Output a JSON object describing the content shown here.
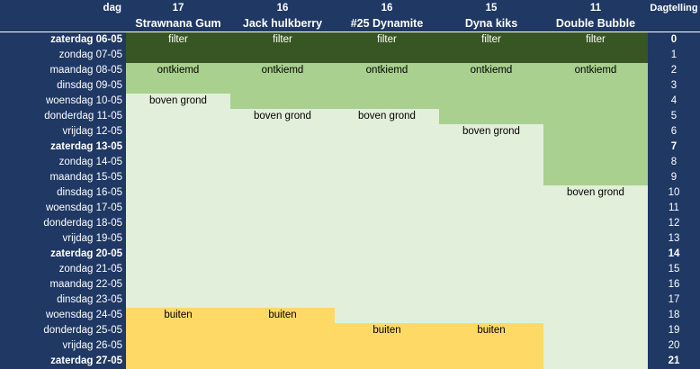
{
  "header": {
    "dag_label": "dag",
    "dagtelling_label": "Dagtelling",
    "plants": [
      {
        "number": "17",
        "name": "Strawnana Gum"
      },
      {
        "number": "16",
        "name": "Jack hulkberry"
      },
      {
        "number": "16",
        "name": "#25 Dynamite"
      },
      {
        "number": "15",
        "name": "Dyna kiks"
      },
      {
        "number": "11",
        "name": "Double Bubble"
      }
    ]
  },
  "stage_colors": {
    "filter": "#375623",
    "ontkiemd": "#a9d08e",
    "boven grond": "#e2efda",
    "buiten": "#ffd966"
  },
  "rows": [
    {
      "date": "zaterdag 06-05",
      "count": "0",
      "bold": true,
      "stages": [
        "filter",
        "filter",
        "filter",
        "filter",
        "filter"
      ],
      "labels": [
        "filter",
        "filter",
        "filter",
        "filter",
        "filter"
      ]
    },
    {
      "date": "zondag 07-05",
      "count": "1",
      "bold": false,
      "stages": [
        "filter",
        "filter",
        "filter",
        "filter",
        "filter"
      ],
      "labels": [
        "",
        "",
        "",
        "",
        ""
      ]
    },
    {
      "date": "maandag 08-05",
      "count": "2",
      "bold": false,
      "stages": [
        "ontkiemd",
        "ontkiemd",
        "ontkiemd",
        "ontkiemd",
        "ontkiemd"
      ],
      "labels": [
        "ontkiemd",
        "ontkiemd",
        "ontkiemd",
        "ontkiemd",
        "ontkiemd"
      ]
    },
    {
      "date": "dinsdag 09-05",
      "count": "3",
      "bold": false,
      "stages": [
        "ontkiemd",
        "ontkiemd",
        "ontkiemd",
        "ontkiemd",
        "ontkiemd"
      ],
      "labels": [
        "",
        "",
        "",
        "",
        ""
      ]
    },
    {
      "date": "woensdag 10-05",
      "count": "4",
      "bold": false,
      "stages": [
        "boven grond",
        "ontkiemd",
        "ontkiemd",
        "ontkiemd",
        "ontkiemd"
      ],
      "labels": [
        "boven grond",
        "",
        "",
        "",
        ""
      ]
    },
    {
      "date": "donderdag 11-05",
      "count": "5",
      "bold": false,
      "stages": [
        "boven grond",
        "boven grond",
        "boven grond",
        "ontkiemd",
        "ontkiemd"
      ],
      "labels": [
        "",
        "boven grond",
        "boven grond",
        "",
        ""
      ]
    },
    {
      "date": "vrijdag 12-05",
      "count": "6",
      "bold": false,
      "stages": [
        "boven grond",
        "boven grond",
        "boven grond",
        "boven grond",
        "ontkiemd"
      ],
      "labels": [
        "",
        "",
        "",
        "boven grond",
        ""
      ]
    },
    {
      "date": "zaterdag 13-05",
      "count": "7",
      "bold": true,
      "stages": [
        "boven grond",
        "boven grond",
        "boven grond",
        "boven grond",
        "ontkiemd"
      ],
      "labels": [
        "",
        "",
        "",
        "",
        ""
      ]
    },
    {
      "date": "zondag 14-05",
      "count": "8",
      "bold": false,
      "stages": [
        "boven grond",
        "boven grond",
        "boven grond",
        "boven grond",
        "ontkiemd"
      ],
      "labels": [
        "",
        "",
        "",
        "",
        ""
      ]
    },
    {
      "date": "maandag 15-05",
      "count": "9",
      "bold": false,
      "stages": [
        "boven grond",
        "boven grond",
        "boven grond",
        "boven grond",
        "ontkiemd"
      ],
      "labels": [
        "",
        "",
        "",
        "",
        ""
      ]
    },
    {
      "date": "dinsdag 16-05",
      "count": "10",
      "bold": false,
      "stages": [
        "boven grond",
        "boven grond",
        "boven grond",
        "boven grond",
        "boven grond"
      ],
      "labels": [
        "",
        "",
        "",
        "",
        "boven grond"
      ]
    },
    {
      "date": "woensdag 17-05",
      "count": "11",
      "bold": false,
      "stages": [
        "boven grond",
        "boven grond",
        "boven grond",
        "boven grond",
        "boven grond"
      ],
      "labels": [
        "",
        "",
        "",
        "",
        ""
      ]
    },
    {
      "date": "donderdag 18-05",
      "count": "12",
      "bold": false,
      "stages": [
        "boven grond",
        "boven grond",
        "boven grond",
        "boven grond",
        "boven grond"
      ],
      "labels": [
        "",
        "",
        "",
        "",
        ""
      ]
    },
    {
      "date": "vrijdag 19-05",
      "count": "13",
      "bold": false,
      "stages": [
        "boven grond",
        "boven grond",
        "boven grond",
        "boven grond",
        "boven grond"
      ],
      "labels": [
        "",
        "",
        "",
        "",
        ""
      ]
    },
    {
      "date": "zaterdag 20-05",
      "count": "14",
      "bold": true,
      "stages": [
        "boven grond",
        "boven grond",
        "boven grond",
        "boven grond",
        "boven grond"
      ],
      "labels": [
        "",
        "",
        "",
        "",
        ""
      ]
    },
    {
      "date": "zondag 21-05",
      "count": "15",
      "bold": false,
      "stages": [
        "boven grond",
        "boven grond",
        "boven grond",
        "boven grond",
        "boven grond"
      ],
      "labels": [
        "",
        "",
        "",
        "",
        ""
      ]
    },
    {
      "date": "maandag 22-05",
      "count": "16",
      "bold": false,
      "stages": [
        "boven grond",
        "boven grond",
        "boven grond",
        "boven grond",
        "boven grond"
      ],
      "labels": [
        "",
        "",
        "",
        "",
        ""
      ]
    },
    {
      "date": "dinsdag 23-05",
      "count": "17",
      "bold": false,
      "stages": [
        "boven grond",
        "boven grond",
        "boven grond",
        "boven grond",
        "boven grond"
      ],
      "labels": [
        "",
        "",
        "",
        "",
        ""
      ]
    },
    {
      "date": "woensdag 24-05",
      "count": "18",
      "bold": false,
      "stages": [
        "buiten",
        "buiten",
        "boven grond",
        "boven grond",
        "boven grond"
      ],
      "labels": [
        "buiten",
        "buiten",
        "",
        "",
        ""
      ]
    },
    {
      "date": "donderdag 25-05",
      "count": "19",
      "bold": false,
      "stages": [
        "buiten",
        "buiten",
        "buiten",
        "buiten",
        "boven grond"
      ],
      "labels": [
        "",
        "",
        "buiten",
        "buiten",
        ""
      ]
    },
    {
      "date": "vrijdag 26-05",
      "count": "20",
      "bold": false,
      "stages": [
        "buiten",
        "buiten",
        "buiten",
        "buiten",
        "boven grond"
      ],
      "labels": [
        "",
        "",
        "",
        "",
        ""
      ]
    },
    {
      "date": "zaterdag 27-05",
      "count": "21",
      "bold": true,
      "stages": [
        "buiten",
        "buiten",
        "buiten",
        "buiten",
        "boven grond"
      ],
      "labels": [
        "",
        "",
        "",
        "",
        ""
      ]
    }
  ]
}
